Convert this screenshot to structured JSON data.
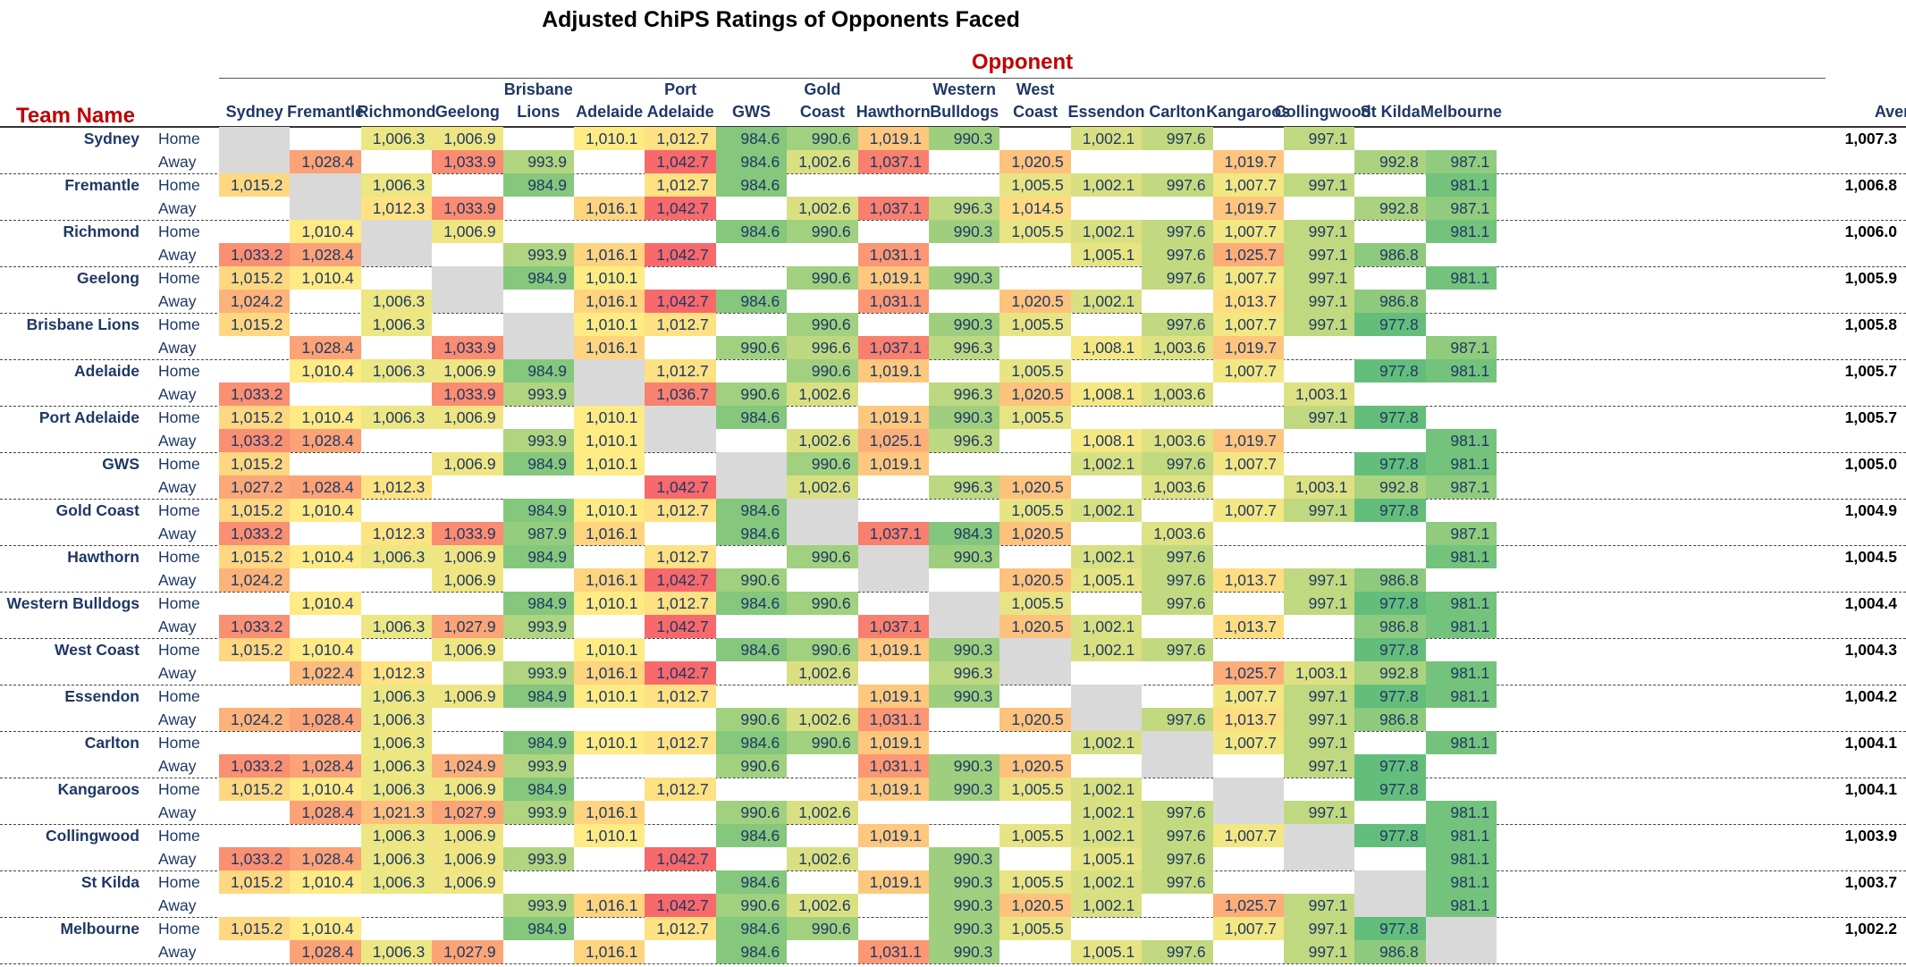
{
  "chart_data": {
    "type": "table",
    "title": "Adjusted ChiPS Ratings of Opponents Faced",
    "column_group_label": "Opponent",
    "row_header_label": "Team Name",
    "columns": [
      [
        "Sydney"
      ],
      [
        "Fremantle"
      ],
      [
        "Richmond"
      ],
      [
        "Geelong"
      ],
      [
        "Brisbane",
        "Lions"
      ],
      [
        "Adelaide"
      ],
      [
        "Port",
        "Adelaide"
      ],
      [
        "GWS"
      ],
      [
        "Gold",
        "Coast"
      ],
      [
        "Hawthorn"
      ],
      [
        "Western",
        "Bulldogs"
      ],
      [
        "West",
        "Coast"
      ],
      [
        "Essendon"
      ],
      [
        "Carlton"
      ],
      [
        "Kangaroos"
      ],
      [
        "Collingwood"
      ],
      [
        "St Kilda"
      ],
      [
        "Melbourne"
      ]
    ],
    "average_label": "Average",
    "home_label": "Home",
    "away_label": "Away",
    "teams": [
      {
        "name": "Sydney",
        "average": "1,007.3",
        "home": [
          null,
          null,
          1006.3,
          1006.9,
          null,
          1010.1,
          1012.7,
          984.6,
          990.6,
          1019.1,
          990.3,
          null,
          1002.1,
          997.6,
          null,
          997.1,
          null,
          null
        ],
        "away": [
          null,
          1028.4,
          null,
          1033.9,
          993.9,
          null,
          1042.7,
          984.6,
          1002.6,
          1037.1,
          null,
          1020.5,
          null,
          null,
          1019.7,
          null,
          992.8,
          987.1
        ]
      },
      {
        "name": "Fremantle",
        "average": "1,006.8",
        "home": [
          1015.2,
          null,
          1006.3,
          null,
          984.9,
          null,
          1012.7,
          984.6,
          null,
          null,
          null,
          1005.5,
          1002.1,
          997.6,
          1007.7,
          997.1,
          null,
          981.1
        ],
        "away": [
          null,
          null,
          1012.3,
          1033.9,
          null,
          1016.1,
          1042.7,
          null,
          1002.6,
          1037.1,
          996.3,
          1014.5,
          null,
          null,
          1019.7,
          null,
          992.8,
          987.1
        ]
      },
      {
        "name": "Richmond",
        "average": "1,006.0",
        "home": [
          null,
          1010.4,
          null,
          1006.9,
          null,
          null,
          null,
          984.6,
          990.6,
          null,
          990.3,
          1005.5,
          1002.1,
          997.6,
          1007.7,
          997.1,
          null,
          981.1
        ],
        "away": [
          1033.2,
          1028.4,
          null,
          null,
          993.9,
          1016.1,
          1042.7,
          null,
          null,
          1031.1,
          null,
          null,
          1005.1,
          997.6,
          1025.7,
          997.1,
          986.8,
          null
        ]
      },
      {
        "name": "Geelong",
        "average": "1,005.9",
        "home": [
          1015.2,
          1010.4,
          null,
          null,
          984.9,
          1010.1,
          null,
          null,
          990.6,
          1019.1,
          990.3,
          null,
          null,
          997.6,
          1007.7,
          997.1,
          null,
          981.1
        ],
        "away": [
          1024.2,
          null,
          1006.3,
          null,
          null,
          1016.1,
          1042.7,
          984.6,
          null,
          1031.1,
          null,
          1020.5,
          1002.1,
          null,
          1013.7,
          997.1,
          986.8,
          null
        ]
      },
      {
        "name": "Brisbane Lions",
        "average": "1,005.8",
        "home": [
          1015.2,
          null,
          1006.3,
          null,
          null,
          1010.1,
          1012.7,
          null,
          990.6,
          null,
          990.3,
          1005.5,
          null,
          997.6,
          1007.7,
          997.1,
          977.8,
          null
        ],
        "away": [
          null,
          1028.4,
          null,
          1033.9,
          null,
          1016.1,
          null,
          990.6,
          996.6,
          1037.1,
          996.3,
          null,
          1008.1,
          1003.6,
          1019.7,
          null,
          null,
          987.1
        ]
      },
      {
        "name": "Adelaide",
        "average": "1,005.7",
        "home": [
          null,
          1010.4,
          1006.3,
          1006.9,
          984.9,
          null,
          1012.7,
          null,
          990.6,
          1019.1,
          null,
          1005.5,
          null,
          null,
          1007.7,
          null,
          977.8,
          981.1
        ],
        "away": [
          1033.2,
          null,
          null,
          1033.9,
          993.9,
          null,
          1036.7,
          990.6,
          1002.6,
          null,
          996.3,
          1020.5,
          1008.1,
          1003.6,
          null,
          1003.1,
          null,
          null
        ]
      },
      {
        "name": "Port Adelaide",
        "average": "1,005.7",
        "home": [
          1015.2,
          1010.4,
          1006.3,
          1006.9,
          null,
          1010.1,
          null,
          984.6,
          null,
          1019.1,
          990.3,
          1005.5,
          null,
          null,
          null,
          997.1,
          977.8,
          null
        ],
        "away": [
          1033.2,
          1028.4,
          null,
          null,
          993.9,
          1010.1,
          null,
          null,
          1002.6,
          1025.1,
          996.3,
          null,
          1008.1,
          1003.6,
          1019.7,
          null,
          null,
          981.1
        ]
      },
      {
        "name": "GWS",
        "average": "1,005.0",
        "home": [
          1015.2,
          null,
          null,
          1006.9,
          984.9,
          1010.1,
          null,
          null,
          990.6,
          1019.1,
          null,
          null,
          1002.1,
          997.6,
          1007.7,
          null,
          977.8,
          981.1
        ],
        "away": [
          1027.2,
          1028.4,
          1012.3,
          null,
          null,
          null,
          1042.7,
          null,
          1002.6,
          null,
          996.3,
          1020.5,
          null,
          1003.6,
          null,
          1003.1,
          992.8,
          987.1
        ]
      },
      {
        "name": "Gold Coast",
        "average": "1,004.9",
        "home": [
          1015.2,
          1010.4,
          null,
          null,
          984.9,
          1010.1,
          1012.7,
          984.6,
          null,
          null,
          null,
          1005.5,
          1002.1,
          null,
          1007.7,
          997.1,
          977.8,
          null
        ],
        "away": [
          1033.2,
          null,
          1012.3,
          1033.9,
          987.9,
          1016.1,
          null,
          984.6,
          null,
          1037.1,
          984.3,
          1020.5,
          null,
          1003.6,
          null,
          null,
          null,
          987.1
        ]
      },
      {
        "name": "Hawthorn",
        "average": "1,004.5",
        "home": [
          1015.2,
          1010.4,
          1006.3,
          1006.9,
          984.9,
          null,
          1012.7,
          null,
          990.6,
          null,
          990.3,
          null,
          1002.1,
          997.6,
          null,
          null,
          null,
          981.1
        ],
        "away": [
          1024.2,
          null,
          null,
          1006.9,
          null,
          1016.1,
          1042.7,
          990.6,
          null,
          null,
          null,
          1020.5,
          1005.1,
          997.6,
          1013.7,
          997.1,
          986.8,
          null
        ]
      },
      {
        "name": "Western Bulldogs",
        "average": "1,004.4",
        "home": [
          null,
          1010.4,
          null,
          null,
          984.9,
          1010.1,
          1012.7,
          984.6,
          990.6,
          null,
          null,
          1005.5,
          null,
          997.6,
          null,
          997.1,
          977.8,
          981.1
        ],
        "away": [
          1033.2,
          null,
          1006.3,
          1027.9,
          993.9,
          null,
          1042.7,
          null,
          null,
          1037.1,
          null,
          1020.5,
          1002.1,
          null,
          1013.7,
          null,
          986.8,
          981.1
        ]
      },
      {
        "name": "West Coast",
        "average": "1,004.3",
        "home": [
          1015.2,
          1010.4,
          null,
          1006.9,
          null,
          1010.1,
          null,
          984.6,
          990.6,
          1019.1,
          990.3,
          null,
          1002.1,
          997.6,
          null,
          null,
          977.8,
          null
        ],
        "away": [
          null,
          1022.4,
          1012.3,
          null,
          993.9,
          1016.1,
          1042.7,
          null,
          1002.6,
          null,
          996.3,
          null,
          null,
          null,
          1025.7,
          1003.1,
          992.8,
          981.1
        ]
      },
      {
        "name": "Essendon",
        "average": "1,004.2",
        "home": [
          null,
          null,
          1006.3,
          1006.9,
          984.9,
          1010.1,
          1012.7,
          null,
          null,
          1019.1,
          990.3,
          null,
          null,
          null,
          1007.7,
          997.1,
          977.8,
          981.1
        ],
        "away": [
          1024.2,
          1028.4,
          1006.3,
          null,
          null,
          null,
          null,
          990.6,
          1002.6,
          1031.1,
          null,
          1020.5,
          null,
          997.6,
          1013.7,
          997.1,
          986.8,
          null
        ]
      },
      {
        "name": "Carlton",
        "average": "1,004.1",
        "home": [
          null,
          null,
          1006.3,
          null,
          984.9,
          1010.1,
          1012.7,
          984.6,
          990.6,
          1019.1,
          null,
          null,
          1002.1,
          null,
          1007.7,
          997.1,
          null,
          981.1
        ],
        "away": [
          1033.2,
          1028.4,
          1006.3,
          1024.9,
          993.9,
          null,
          null,
          990.6,
          null,
          1031.1,
          990.3,
          1020.5,
          null,
          null,
          null,
          997.1,
          977.8,
          null
        ]
      },
      {
        "name": "Kangaroos",
        "average": "1,004.1",
        "home": [
          1015.2,
          1010.4,
          1006.3,
          1006.9,
          984.9,
          null,
          1012.7,
          null,
          null,
          1019.1,
          990.3,
          1005.5,
          1002.1,
          null,
          null,
          null,
          977.8,
          null
        ],
        "away": [
          null,
          1028.4,
          1021.3,
          1027.9,
          993.9,
          1016.1,
          null,
          990.6,
          1002.6,
          null,
          null,
          null,
          1002.1,
          997.6,
          null,
          997.1,
          null,
          981.1
        ]
      },
      {
        "name": "Collingwood",
        "average": "1,003.9",
        "home": [
          null,
          null,
          1006.3,
          1006.9,
          null,
          1010.1,
          null,
          984.6,
          null,
          1019.1,
          null,
          1005.5,
          1002.1,
          997.6,
          1007.7,
          null,
          977.8,
          981.1
        ],
        "away": [
          1033.2,
          1028.4,
          1006.3,
          1006.9,
          993.9,
          null,
          1042.7,
          null,
          1002.6,
          null,
          990.3,
          null,
          1005.1,
          997.6,
          null,
          null,
          null,
          981.1
        ]
      },
      {
        "name": "St Kilda",
        "average": "1,003.7",
        "home": [
          1015.2,
          1010.4,
          1006.3,
          1006.9,
          null,
          null,
          null,
          984.6,
          null,
          1019.1,
          990.3,
          1005.5,
          1002.1,
          997.6,
          null,
          null,
          null,
          981.1
        ],
        "away": [
          null,
          null,
          null,
          null,
          993.9,
          1016.1,
          1042.7,
          990.6,
          1002.6,
          null,
          990.3,
          1020.5,
          1002.1,
          null,
          1025.7,
          997.1,
          null,
          981.1
        ]
      },
      {
        "name": "Melbourne",
        "average": "1,002.2",
        "home": [
          1015.2,
          1010.4,
          null,
          null,
          984.9,
          null,
          1012.7,
          984.6,
          990.6,
          null,
          990.3,
          1005.5,
          null,
          null,
          1007.7,
          997.1,
          977.8,
          null
        ],
        "away": [
          null,
          1028.4,
          1006.3,
          1027.9,
          null,
          1016.1,
          null,
          984.6,
          null,
          1031.1,
          990.3,
          null,
          1005.1,
          997.6,
          null,
          997.1,
          986.8,
          null
        ]
      }
    ],
    "color_scale": {
      "low": "#63be7b",
      "mid": "#ffeb84",
      "high": "#f8696b",
      "min": 977.8,
      "max": 1042.7
    },
    "diagonal_color": "#d9d9d9"
  }
}
